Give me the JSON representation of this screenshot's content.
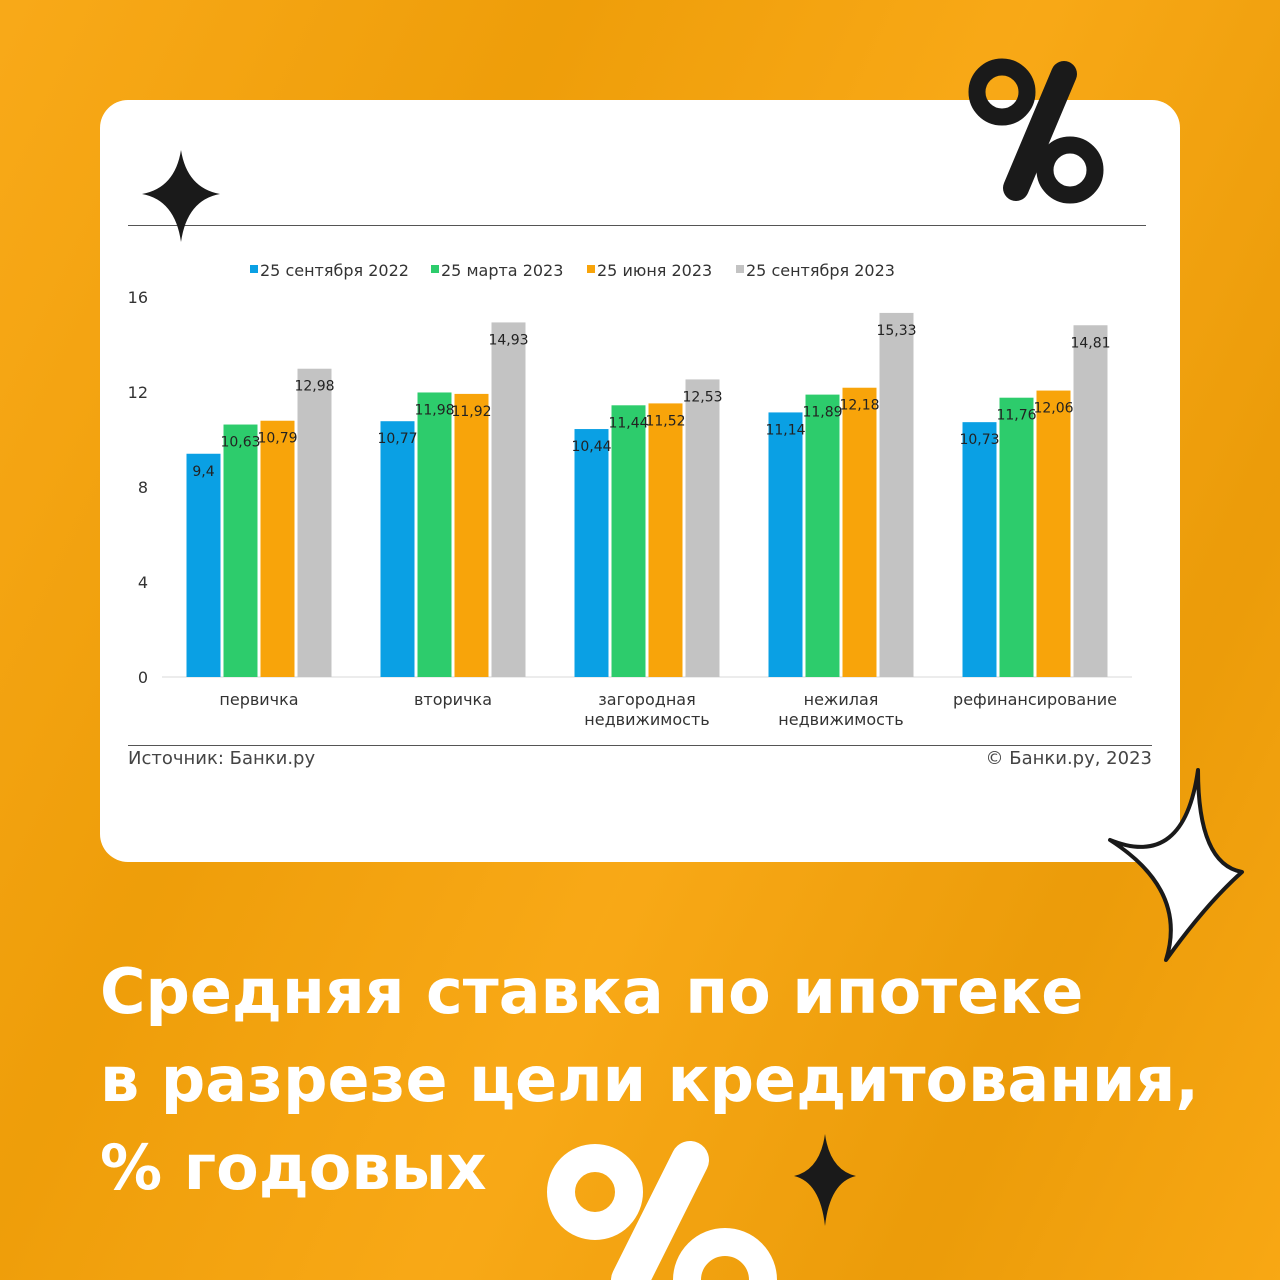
{
  "source": "Источник: Банки.ру",
  "copyright": "© Банки.ру, 2023",
  "headline": {
    "line1": "Средняя ставка по ипотеке",
    "line2": "в разрезе цели кредитования,",
    "line3": "% годовых"
  },
  "colors": {
    "background": "#f8a40a",
    "series": [
      "#0aa0e4",
      "#2dcc6c",
      "#f8a40a",
      "#c3c3c3"
    ]
  },
  "icons": [
    "percent-icon",
    "sparkle-icon"
  ],
  "chart_data": {
    "type": "bar",
    "categories": [
      [
        "первичка"
      ],
      [
        "вторичка"
      ],
      [
        "загородная",
        "недвижимость"
      ],
      [
        "нежилая",
        "недвижимость"
      ],
      [
        "рефинансирование"
      ]
    ],
    "series": [
      {
        "name": "25 сентября 2022",
        "values": [
          9.4,
          10.77,
          10.44,
          11.14,
          10.73
        ],
        "labels": [
          "9,4",
          "10,77",
          "10,44",
          "11,14",
          "10,73"
        ]
      },
      {
        "name": "25 марта 2023",
        "values": [
          10.63,
          11.98,
          11.44,
          11.89,
          11.76
        ],
        "labels": [
          "10,63",
          "11,98",
          "11,44",
          "11,89",
          "11,76"
        ]
      },
      {
        "name": "25 июня 2023",
        "values": [
          10.79,
          11.92,
          11.52,
          12.18,
          12.06
        ],
        "labels": [
          "10,79",
          "11,92",
          "11,52",
          "12,18",
          "12,06"
        ]
      },
      {
        "name": "25 сентября 2023",
        "values": [
          12.98,
          14.93,
          12.53,
          15.33,
          14.81
        ],
        "labels": [
          "12,98",
          "14,93",
          "12,53",
          "15,33",
          "14,81"
        ]
      }
    ],
    "yticks": [
      "0",
      "4",
      "8",
      "12",
      "16"
    ],
    "ylim": [
      0,
      16
    ],
    "legend": "top",
    "grid": false
  }
}
